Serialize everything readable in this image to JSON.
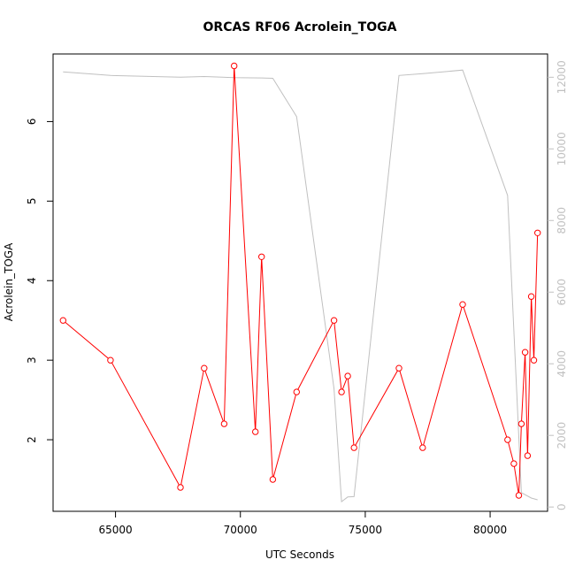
{
  "chart_data": {
    "type": "line",
    "title": "ORCAS RF06 Acrolein_TOGA",
    "xlabel": "UTC Seconds",
    "ylabel": "Acrolein_TOGA",
    "xlim": [
      62500,
      82300
    ],
    "ylim": [
      1.1,
      6.85
    ],
    "y2lim": [
      -120,
      12650
    ],
    "x_ticks": [
      65000,
      70000,
      75000,
      80000
    ],
    "y_ticks": [
      2,
      3,
      4,
      5,
      6
    ],
    "y2_ticks": [
      0,
      2000,
      4000,
      6000,
      8000,
      10000,
      12000
    ],
    "grid": false,
    "series": [
      {
        "axis": "left",
        "color": "#ff0000",
        "marker": "open-circle",
        "x": [
          62900,
          64800,
          67600,
          68550,
          69350,
          69750,
          70600,
          70850,
          71300,
          72250,
          73750,
          74050,
          74300,
          74550,
          76350,
          77300,
          78900,
          80700,
          80950,
          81150,
          81250,
          81400,
          81500,
          81650,
          81750,
          81900
        ],
        "y": [
          3.5,
          3.0,
          1.4,
          2.9,
          2.2,
          6.7,
          2.1,
          4.3,
          1.5,
          2.6,
          3.5,
          2.6,
          2.8,
          1.9,
          2.9,
          1.9,
          3.7,
          2.0,
          1.7,
          1.3,
          2.2,
          3.1,
          1.8,
          3.8,
          3.0,
          4.6
        ]
      },
      {
        "axis": "right",
        "color": "#c0c0c0",
        "marker": "none",
        "x": [
          62900,
          64800,
          67600,
          68550,
          69750,
          70850,
          71300,
          72250,
          73750,
          74050,
          74300,
          74550,
          76350,
          77300,
          78900,
          80700,
          81250,
          81650,
          81900
        ],
        "y": [
          12150,
          12050,
          12000,
          12020,
          11990,
          11980,
          11970,
          10900,
          3300,
          150,
          280,
          290,
          12050,
          12100,
          12200,
          8700,
          400,
          250,
          200
        ]
      }
    ]
  }
}
